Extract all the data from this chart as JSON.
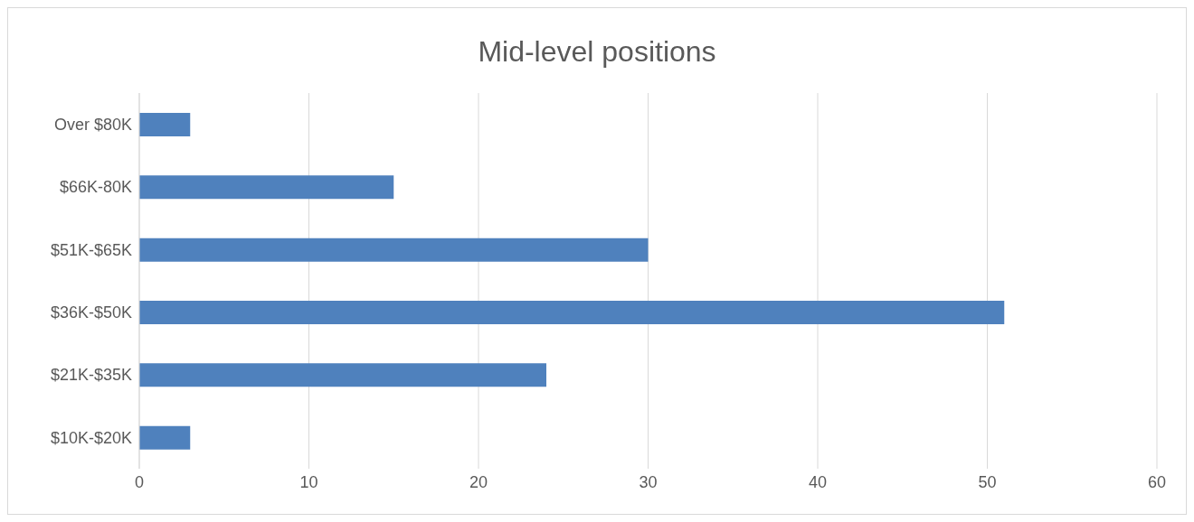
{
  "chart_data": {
    "type": "bar",
    "orientation": "horizontal",
    "title": "Mid-level positions",
    "categories": [
      "Over $80K",
      "$66K-80K",
      "$51K-$65K",
      "$36K-$50K",
      "$21K-$35K",
      "$10K-$20K"
    ],
    "values": [
      3,
      15,
      30,
      51,
      24,
      3
    ],
    "color": "#4f81bd",
    "xlim": [
      0,
      60
    ],
    "xticks": [
      0,
      10,
      20,
      30,
      40,
      50,
      60
    ],
    "grid": "x"
  }
}
